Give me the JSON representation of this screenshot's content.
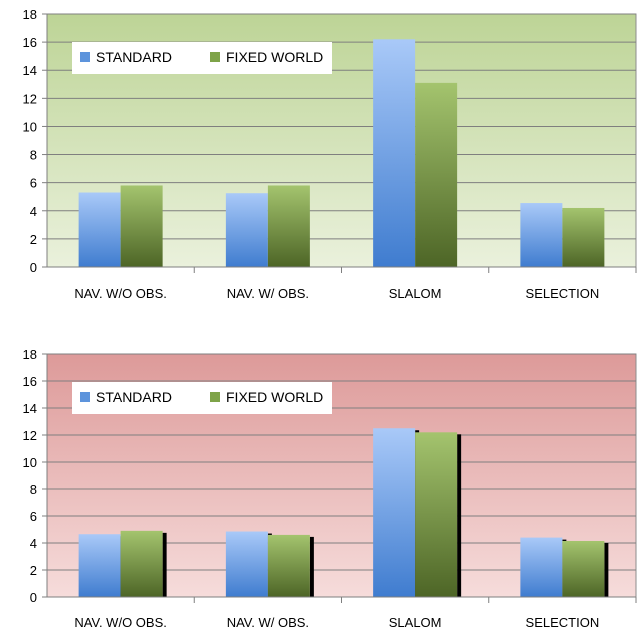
{
  "colors": {
    "standard": "#5d94dc",
    "fixed_world": "#7ea348",
    "chart1_bg_top": "#bdd496",
    "chart1_bg_bottom": "#eaf1dc",
    "chart2_bg_top": "#dd9a99",
    "chart2_bg_bottom": "#f6dcdb",
    "grid": "#7f7f7f"
  },
  "chart_data": [
    {
      "type": "bar",
      "title": "",
      "xlabel": "",
      "ylabel": "",
      "categories": [
        "NAV. W/O OBS.",
        "NAV. W/ OBS.",
        "SLALOM",
        "SELECTION"
      ],
      "series": [
        {
          "name": "STANDARD",
          "values": [
            5.3,
            5.25,
            16.2,
            4.55
          ]
        },
        {
          "name": "FIXED WORLD",
          "values": [
            5.8,
            5.8,
            13.1,
            4.2
          ]
        }
      ],
      "ylim": [
        0,
        18
      ],
      "yticks": [
        "0",
        "2",
        "4",
        "6",
        "8",
        "10",
        "12",
        "14",
        "16",
        "18"
      ],
      "grid": true,
      "legend_position": "top-left",
      "background": "green gradient"
    },
    {
      "type": "bar",
      "title": "",
      "xlabel": "",
      "ylabel": "",
      "categories": [
        "NAV. W/O OBS.",
        "NAV. W/ OBS.",
        "SLALOM",
        "SELECTION"
      ],
      "series": [
        {
          "name": "STANDARD",
          "values": [
            4.65,
            4.85,
            12.5,
            4.4
          ]
        },
        {
          "name": "FIXED WORLD",
          "values": [
            4.9,
            4.6,
            12.2,
            4.15
          ]
        }
      ],
      "ylim": [
        0,
        18
      ],
      "yticks": [
        "0",
        "2",
        "4",
        "6",
        "8",
        "10",
        "12",
        "14",
        "16",
        "18"
      ],
      "grid": true,
      "legend_position": "top-left",
      "background": "red gradient"
    }
  ]
}
